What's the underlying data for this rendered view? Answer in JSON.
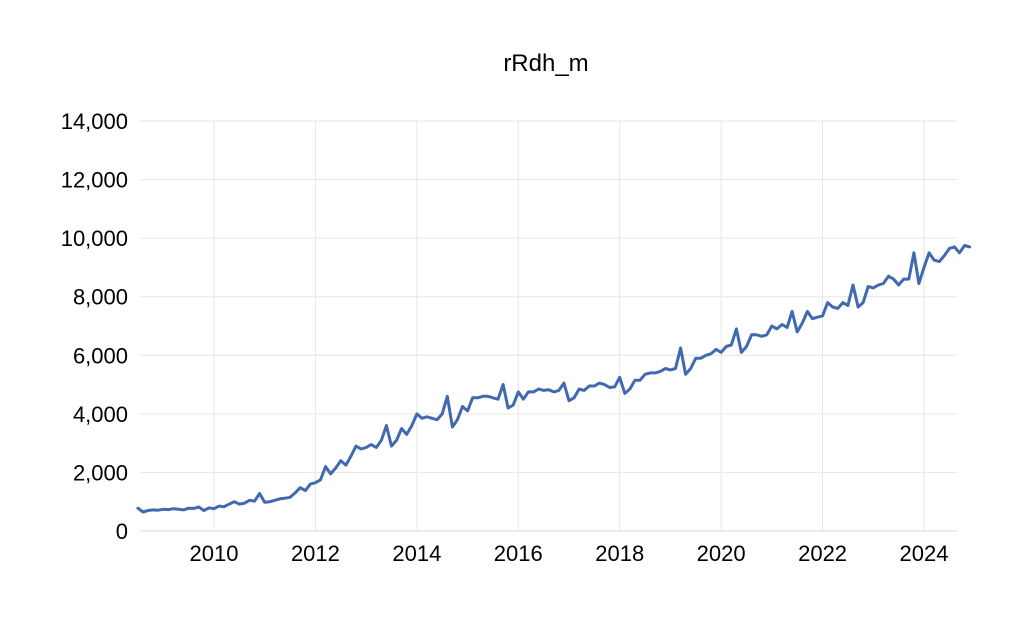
{
  "chart_data": {
    "type": "line",
    "title": "rRdh_m",
    "xlabel": "",
    "ylabel": "",
    "ylim": [
      0,
      14000
    ],
    "xlim": [
      2008.5,
      2024.8
    ],
    "y_ticks": [
      "0",
      "2,000",
      "4,000",
      "6,000",
      "8,000",
      "10,000",
      "12,000",
      "14,000"
    ],
    "x_ticks": [
      "2010",
      "2012",
      "2014",
      "2016",
      "2018",
      "2020",
      "2022",
      "2024"
    ],
    "grid": true,
    "legend": "none",
    "series": [
      {
        "color": "#4169b0",
        "points": [
          [
            2008.5,
            780
          ],
          [
            2008.6,
            650
          ],
          [
            2008.7,
            700
          ],
          [
            2008.8,
            720
          ],
          [
            2008.9,
            710
          ],
          [
            2009.0,
            740
          ],
          [
            2009.1,
            730
          ],
          [
            2009.2,
            760
          ],
          [
            2009.3,
            740
          ],
          [
            2009.4,
            720
          ],
          [
            2009.5,
            780
          ],
          [
            2009.6,
            770
          ],
          [
            2009.7,
            820
          ],
          [
            2009.8,
            700
          ],
          [
            2009.9,
            790
          ],
          [
            2010.0,
            760
          ],
          [
            2010.1,
            850
          ],
          [
            2010.2,
            830
          ],
          [
            2010.3,
            920
          ],
          [
            2010.4,
            1000
          ],
          [
            2010.5,
            920
          ],
          [
            2010.6,
            950
          ],
          [
            2010.7,
            1050
          ],
          [
            2010.8,
            1020
          ],
          [
            2010.9,
            1280
          ],
          [
            2011.0,
            980
          ],
          [
            2011.1,
            1000
          ],
          [
            2011.2,
            1050
          ],
          [
            2011.3,
            1100
          ],
          [
            2011.4,
            1120
          ],
          [
            2011.5,
            1150
          ],
          [
            2011.6,
            1300
          ],
          [
            2011.7,
            1480
          ],
          [
            2011.8,
            1380
          ],
          [
            2011.9,
            1600
          ],
          [
            2012.0,
            1650
          ],
          [
            2012.1,
            1750
          ],
          [
            2012.2,
            2200
          ],
          [
            2012.3,
            1950
          ],
          [
            2012.4,
            2150
          ],
          [
            2012.5,
            2400
          ],
          [
            2012.6,
            2250
          ],
          [
            2012.7,
            2550
          ],
          [
            2012.8,
            2900
          ],
          [
            2012.9,
            2800
          ],
          [
            2013.0,
            2850
          ],
          [
            2013.1,
            2950
          ],
          [
            2013.2,
            2850
          ],
          [
            2013.3,
            3100
          ],
          [
            2013.4,
            3600
          ],
          [
            2013.5,
            2900
          ],
          [
            2013.6,
            3100
          ],
          [
            2013.7,
            3500
          ],
          [
            2013.8,
            3300
          ],
          [
            2013.9,
            3600
          ],
          [
            2014.0,
            4000
          ],
          [
            2014.1,
            3850
          ],
          [
            2014.2,
            3900
          ],
          [
            2014.3,
            3850
          ],
          [
            2014.4,
            3800
          ],
          [
            2014.5,
            4000
          ],
          [
            2014.6,
            4600
          ],
          [
            2014.7,
            3550
          ],
          [
            2014.8,
            3800
          ],
          [
            2014.9,
            4250
          ],
          [
            2015.0,
            4100
          ],
          [
            2015.1,
            4550
          ],
          [
            2015.2,
            4550
          ],
          [
            2015.3,
            4600
          ],
          [
            2015.4,
            4600
          ],
          [
            2015.5,
            4550
          ],
          [
            2015.6,
            4500
          ],
          [
            2015.7,
            5000
          ],
          [
            2015.8,
            4200
          ],
          [
            2015.9,
            4300
          ],
          [
            2016.0,
            4750
          ],
          [
            2016.1,
            4500
          ],
          [
            2016.2,
            4750
          ],
          [
            2016.3,
            4750
          ],
          [
            2016.4,
            4850
          ],
          [
            2016.5,
            4800
          ],
          [
            2016.6,
            4820
          ],
          [
            2016.7,
            4750
          ],
          [
            2016.8,
            4800
          ],
          [
            2016.9,
            5050
          ],
          [
            2017.0,
            4450
          ],
          [
            2017.1,
            4550
          ],
          [
            2017.2,
            4850
          ],
          [
            2017.3,
            4800
          ],
          [
            2017.4,
            4950
          ],
          [
            2017.5,
            4950
          ],
          [
            2017.6,
            5050
          ],
          [
            2017.7,
            5000
          ],
          [
            2017.8,
            4900
          ],
          [
            2017.9,
            4920
          ],
          [
            2018.0,
            5250
          ],
          [
            2018.1,
            4700
          ],
          [
            2018.2,
            4850
          ],
          [
            2018.3,
            5150
          ],
          [
            2018.4,
            5150
          ],
          [
            2018.5,
            5350
          ],
          [
            2018.6,
            5400
          ],
          [
            2018.7,
            5400
          ],
          [
            2018.8,
            5450
          ],
          [
            2018.9,
            5550
          ],
          [
            2019.0,
            5500
          ],
          [
            2019.1,
            5550
          ],
          [
            2019.2,
            6250
          ],
          [
            2019.3,
            5350
          ],
          [
            2019.4,
            5550
          ],
          [
            2019.5,
            5900
          ],
          [
            2019.6,
            5900
          ],
          [
            2019.7,
            6000
          ],
          [
            2019.8,
            6050
          ],
          [
            2019.9,
            6200
          ],
          [
            2020.0,
            6100
          ],
          [
            2020.1,
            6300
          ],
          [
            2020.2,
            6350
          ],
          [
            2020.3,
            6900
          ],
          [
            2020.4,
            6100
          ],
          [
            2020.5,
            6300
          ],
          [
            2020.6,
            6700
          ],
          [
            2020.7,
            6700
          ],
          [
            2020.8,
            6650
          ],
          [
            2020.9,
            6700
          ],
          [
            2021.0,
            7000
          ],
          [
            2021.1,
            6900
          ],
          [
            2021.2,
            7050
          ],
          [
            2021.3,
            6950
          ],
          [
            2021.4,
            7500
          ],
          [
            2021.5,
            6800
          ],
          [
            2021.6,
            7100
          ],
          [
            2021.7,
            7500
          ],
          [
            2021.8,
            7250
          ],
          [
            2021.9,
            7300
          ],
          [
            2022.0,
            7350
          ],
          [
            2022.1,
            7800
          ],
          [
            2022.2,
            7650
          ],
          [
            2022.3,
            7600
          ],
          [
            2022.4,
            7800
          ],
          [
            2022.5,
            7700
          ],
          [
            2022.6,
            8400
          ],
          [
            2022.7,
            7650
          ],
          [
            2022.8,
            7800
          ],
          [
            2022.9,
            8350
          ],
          [
            2023.0,
            8300
          ],
          [
            2023.1,
            8400
          ],
          [
            2023.2,
            8450
          ],
          [
            2023.3,
            8700
          ],
          [
            2023.4,
            8600
          ],
          [
            2023.5,
            8400
          ],
          [
            2023.6,
            8600
          ],
          [
            2023.7,
            8600
          ],
          [
            2023.8,
            9500
          ],
          [
            2023.9,
            8450
          ],
          [
            2024.0,
            9000
          ],
          [
            2024.1,
            9500
          ],
          [
            2024.2,
            9250
          ],
          [
            2024.3,
            9200
          ],
          [
            2024.4,
            9400
          ],
          [
            2024.5,
            9650
          ],
          [
            2024.6,
            9700
          ],
          [
            2024.7,
            9500
          ],
          [
            2024.8,
            9750
          ],
          [
            2024.9,
            9700
          ]
        ]
      }
    ]
  }
}
